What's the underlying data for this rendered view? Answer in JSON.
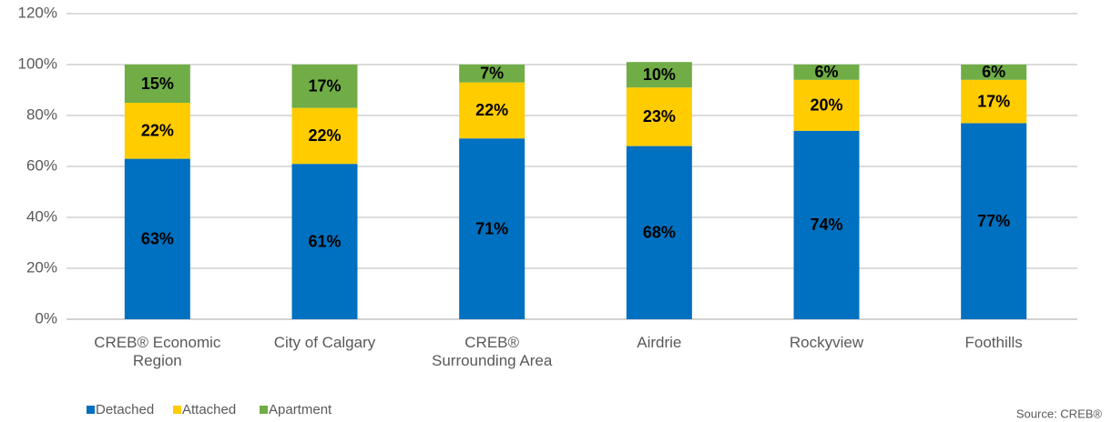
{
  "chart_data": {
    "type": "stacked_bar",
    "categories": [
      "CREB® Economic Region",
      "City of Calgary",
      "CREB® Surrounding Area",
      "Airdrie",
      "Rockyview",
      "Foothills"
    ],
    "series": [
      {
        "name": "Detached",
        "color": "#0070c0",
        "values": [
          63,
          61,
          71,
          68,
          74,
          77
        ],
        "value_labels": [
          "63%",
          "61%",
          "71%",
          "68%",
          "74%",
          "77%"
        ]
      },
      {
        "name": "Attached",
        "color": "#ffcc00",
        "values": [
          22,
          22,
          22,
          23,
          20,
          17
        ],
        "value_labels": [
          "22%",
          "22%",
          "22%",
          "23%",
          "20%",
          "17%"
        ]
      },
      {
        "name": "Apartment",
        "color": "#70ad47",
        "values": [
          15,
          17,
          7,
          10,
          6,
          6
        ],
        "value_labels": [
          "15%",
          "17%",
          "7%",
          "10%",
          "6%",
          "6%"
        ]
      }
    ],
    "ylim": [
      0,
      120
    ],
    "yticks": [
      {
        "value": 0,
        "label": "0%"
      },
      {
        "value": 20,
        "label": "20%"
      },
      {
        "value": 40,
        "label": "40%"
      },
      {
        "value": 60,
        "label": "60%"
      },
      {
        "value": 80,
        "label": "80%"
      },
      {
        "value": 100,
        "label": "100%"
      },
      {
        "value": 120,
        "label": "120%"
      }
    ],
    "grid": true,
    "legend": "bottom-left",
    "source": "Source: CREB®"
  }
}
